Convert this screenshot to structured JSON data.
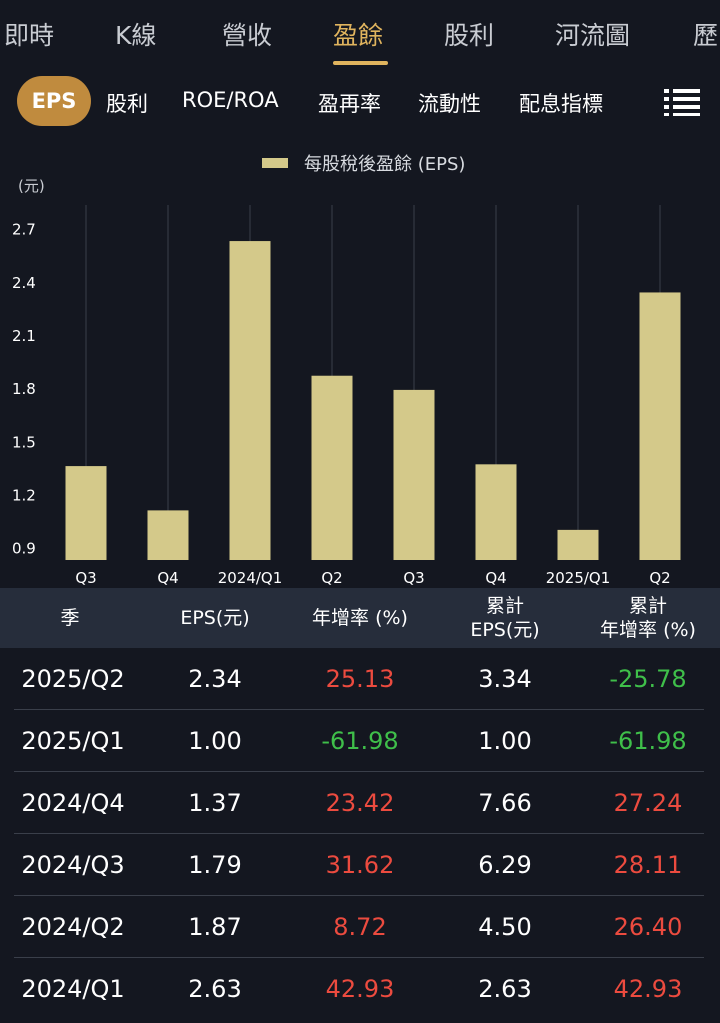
{
  "top_tabs": [
    {
      "label": "即時"
    },
    {
      "label": "K線"
    },
    {
      "label": "營收"
    },
    {
      "label": "盈餘"
    },
    {
      "label": "股利"
    },
    {
      "label": "河流圖"
    },
    {
      "label": "歷"
    }
  ],
  "sub_tabs": {
    "active": "EPS",
    "items": [
      "股利",
      "ROE/ROA",
      "盈再率",
      "流動性",
      "配息指標"
    ]
  },
  "colors": {
    "accent": "#e0b45e",
    "bar": "#d4c98a",
    "positive": "#ec4b3f",
    "negative": "#3fbf4a"
  },
  "chart_data": {
    "type": "bar",
    "legend": "每股稅後盈餘 (EPS)",
    "unit": "(元)",
    "categories": [
      "Q3",
      "Q4",
      "2024/Q1",
      "Q2",
      "Q3",
      "Q4",
      "2025/Q1",
      "Q2"
    ],
    "values": [
      1.36,
      1.11,
      2.63,
      1.87,
      1.79,
      1.37,
      1.0,
      2.34
    ],
    "yticks": [
      "2.7",
      "2.4",
      "2.1",
      "1.8",
      "1.5",
      "1.2",
      "0.9"
    ],
    "ylim": [
      0.83,
      2.89
    ]
  },
  "table": {
    "headers": [
      {
        "line1": "季",
        "line2": ""
      },
      {
        "line1": "EPS(元)",
        "line2": ""
      },
      {
        "line1": "年增率 (%)",
        "line2": ""
      },
      {
        "line1": "累計",
        "line2": "EPS(元)"
      },
      {
        "line1": "累計",
        "line2": "年增率 (%)"
      }
    ],
    "rows": [
      {
        "season": "2025/Q2",
        "eps": "2.34",
        "yoy": "25.13",
        "cum_eps": "3.34",
        "cum_yoy": "-25.78"
      },
      {
        "season": "2025/Q1",
        "eps": "1.00",
        "yoy": "-61.98",
        "cum_eps": "1.00",
        "cum_yoy": "-61.98"
      },
      {
        "season": "2024/Q4",
        "eps": "1.37",
        "yoy": "23.42",
        "cum_eps": "7.66",
        "cum_yoy": "27.24"
      },
      {
        "season": "2024/Q3",
        "eps": "1.79",
        "yoy": "31.62",
        "cum_eps": "6.29",
        "cum_yoy": "28.11"
      },
      {
        "season": "2024/Q2",
        "eps": "1.87",
        "yoy": "8.72",
        "cum_eps": "4.50",
        "cum_yoy": "26.40"
      },
      {
        "season": "2024/Q1",
        "eps": "2.63",
        "yoy": "42.93",
        "cum_eps": "2.63",
        "cum_yoy": "42.93"
      }
    ]
  }
}
